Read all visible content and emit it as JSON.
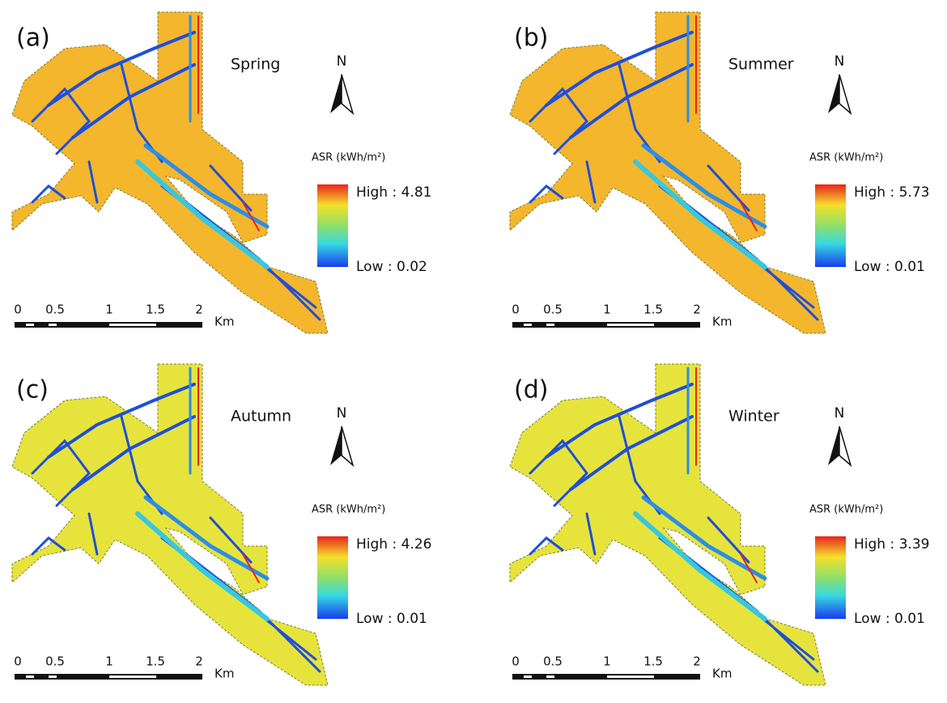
{
  "panels": [
    {
      "label": "(a)",
      "season": "Spring",
      "north": "N",
      "legend_title": "ASR (kWh/m²)",
      "high": "High : 4.81",
      "low": "Low : 0.02",
      "scale_ticks": [
        "0",
        "0.5",
        "1",
        "1.5",
        "2"
      ],
      "scale_unit": "Km"
    },
    {
      "label": "(b)",
      "season": "Summer",
      "north": "N",
      "legend_title": "ASR (kWh/m²)",
      "high": "High : 5.73",
      "low": "Low : 0.01",
      "scale_ticks": [
        "0",
        "0.5",
        "1",
        "1.5",
        "2"
      ],
      "scale_unit": "Km"
    },
    {
      "label": "(c)",
      "season": "Autumn",
      "north": "N",
      "legend_title": "ASR (kWh/m²)",
      "high": "High : 4.26",
      "low": "Low : 0.01",
      "scale_ticks": [
        "0",
        "0.5",
        "1",
        "1.5",
        "2"
      ],
      "scale_unit": "Km"
    },
    {
      "label": "(d)",
      "season": "Winter",
      "north": "N",
      "legend_title": "ASR (kWh/m²)",
      "high": "High : 3.39",
      "low": "Low : 0.01",
      "scale_ticks": [
        "0",
        "0.5",
        "1",
        "1.5",
        "2"
      ],
      "scale_unit": "Km"
    }
  ]
}
